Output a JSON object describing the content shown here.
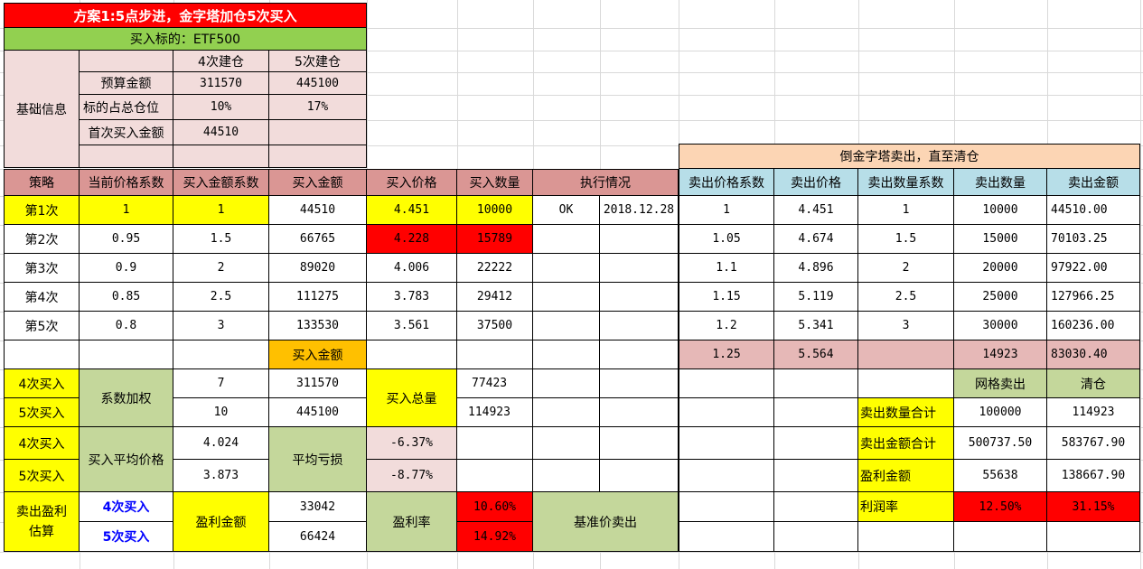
{
  "title": "方案1:5点步进，金字塔加仓5次买入",
  "target": "买入标的：ETF500",
  "basic_info": {
    "label": "基础信息",
    "col_4": "4次建仓",
    "col_5": "5次建仓",
    "budget_label": "预算金额",
    "budget_4": "311570",
    "budget_5": "445100",
    "position_label": "标的占总仓位",
    "position_4": "10%",
    "position_5": "17%",
    "first_buy_label": "首次买入金额",
    "first_buy_4": "44510"
  },
  "headers": {
    "strategy": "策略",
    "price_coef": "当前价格系数",
    "amount_coef": "买入金额系数",
    "buy_amount": "买入金额",
    "buy_price": "买入价格",
    "buy_qty": "买入数量",
    "execution": "执行情况",
    "sell_banner": "倒金字塔卖出，直至清仓",
    "sell_price_coef": "卖出价格系数",
    "sell_price": "卖出价格",
    "sell_qty_coef": "卖出数量系数",
    "sell_qty": "卖出数量",
    "sell_amount": "卖出金额"
  },
  "rows": [
    {
      "name": "第1次",
      "price_coef": "1",
      "amount_coef": "1",
      "amount": "44510",
      "price": "4.451",
      "qty": "10000",
      "status": "OK",
      "date": "2018.12.28",
      "s_coef": "1",
      "s_price": "4.451",
      "s_qcoef": "1",
      "s_qty": "10000",
      "s_amount": "44510.00"
    },
    {
      "name": "第2次",
      "price_coef": "0.95",
      "amount_coef": "1.5",
      "amount": "66765",
      "price": "4.228",
      "qty": "15789",
      "status": "",
      "date": "",
      "s_coef": "1.05",
      "s_price": "4.674",
      "s_qcoef": "1.5",
      "s_qty": "15000",
      "s_amount": "70103.25"
    },
    {
      "name": "第3次",
      "price_coef": "0.9",
      "amount_coef": "2",
      "amount": "89020",
      "price": "4.006",
      "qty": "22222",
      "status": "",
      "date": "",
      "s_coef": "1.1",
      "s_price": "4.896",
      "s_qcoef": "2",
      "s_qty": "20000",
      "s_amount": "97922.00"
    },
    {
      "name": "第4次",
      "price_coef": "0.85",
      "amount_coef": "2.5",
      "amount": "111275",
      "price": "3.783",
      "qty": "29412",
      "status": "",
      "date": "",
      "s_coef": "1.15",
      "s_price": "5.119",
      "s_qcoef": "2.5",
      "s_qty": "25000",
      "s_amount": "127966.25"
    },
    {
      "name": "第5次",
      "price_coef": "0.8",
      "amount_coef": "3",
      "amount": "133530",
      "price": "3.561",
      "qty": "37500",
      "status": "",
      "date": "",
      "s_coef": "1.2",
      "s_price": "5.341",
      "s_qcoef": "3",
      "s_qty": "30000",
      "s_amount": "160236.00"
    }
  ],
  "extra_row": {
    "buy_amount_label": "买入金额",
    "s_coef": "1.25",
    "s_price": "5.564",
    "s_qty": "14923",
    "s_amount": "83030.40"
  },
  "summary": {
    "buy4": "4次买入",
    "buy5": "5次买入",
    "coef_weight_label": "系数加权",
    "coef_weight_4": "7",
    "coef_weight_5": "10",
    "total_4": "311570",
    "total_5": "445100",
    "total_qty_label": "买入总量",
    "total_qty_4": "77423",
    "total_qty_5": "114923",
    "avg_price_label": "买入平均价格",
    "avg_price_4": "4.024",
    "avg_price_5": "3.873",
    "avg_loss_label": "平均亏损",
    "avg_loss_4": "-6.37%",
    "avg_loss_5": "-8.77%",
    "sell_profit_label": "卖出盈利估算",
    "profit_amount_label": "盈利金额",
    "profit_4": "33042",
    "profit_5": "66424",
    "profit_rate_label": "盈利率",
    "profit_rate_4": "10.60%",
    "profit_rate_5": "14.92%",
    "benchmark_sell": "基准价卖出",
    "grid_sell": "网格卖出",
    "clear": "清仓",
    "sell_qty_total_label": "卖出数量合计",
    "sell_qty_total_grid": "100000",
    "sell_qty_total_clear": "114923",
    "sell_amount_total_label": "卖出金额合计",
    "sell_amount_total_grid": "500737.50",
    "sell_amount_total_clear": "583767.90",
    "profit_sum_label": "盈利金额",
    "profit_sum_grid": "55638",
    "profit_sum_clear": "138667.90",
    "margin_label": "利润率",
    "margin_grid": "12.50%",
    "margin_clear": "31.15%"
  },
  "colors": {
    "title_bg": "#ff0000",
    "target_bg": "#92d050",
    "info_bg": "#f2dcdb",
    "header_bg": "#da9694",
    "highlight": "#ffff00",
    "alert": "#ff0000",
    "sell_header": "#b7dee8",
    "banner": "#fcd5b4",
    "summary_green": "#c4d79b"
  }
}
